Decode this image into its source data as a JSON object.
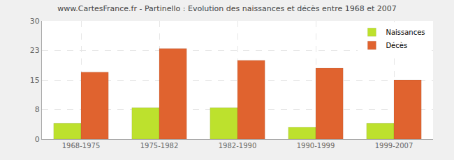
{
  "chart_data": {
    "type": "bar",
    "title": "www.CartesFrance.fr - Partinello : Evolution des naissances et décès entre 1968 et 2007",
    "categories": [
      "1968-1975",
      "1975-1982",
      "1982-1990",
      "1990-1999",
      "1999-2007"
    ],
    "series": [
      {
        "name": "Naissances",
        "color": "#bde12d",
        "values": [
          4,
          8,
          8,
          3,
          4
        ]
      },
      {
        "name": "Décès",
        "color": "#e0632f",
        "values": [
          17,
          23,
          20,
          18,
          15
        ]
      }
    ],
    "ylim": [
      0,
      30
    ],
    "yticks": [
      0,
      {
        "value": 7.5,
        "label": "8"
      },
      15,
      {
        "value": 22.5,
        "label": "23"
      },
      30
    ],
    "grid": true,
    "legend": "upper right"
  }
}
